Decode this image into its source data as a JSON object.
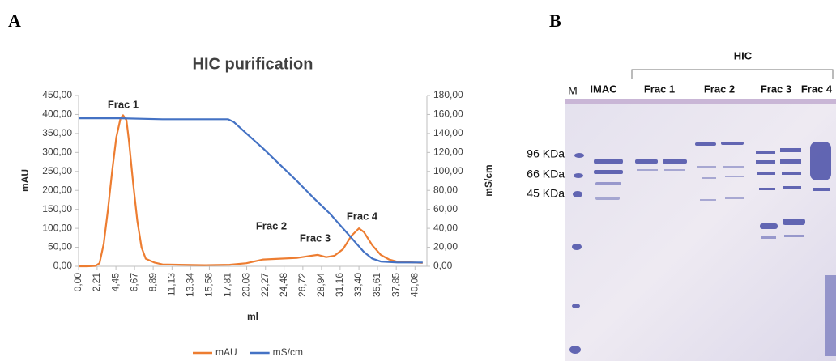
{
  "panel_labels": [
    "A",
    "B"
  ],
  "chart_data": {
    "type": "line",
    "title": "HIC purification",
    "x_label": "ml",
    "y_label": "mAU",
    "y2_label": "mS/cm",
    "grid": false,
    "legend": "bottom",
    "xlim": [
      0,
      41.5
    ],
    "xticks": [
      {
        "value": 0,
        "label": "0,00"
      },
      {
        "value": 2.21,
        "label": "2,21"
      },
      {
        "value": 4.45,
        "label": "4,45"
      },
      {
        "value": 6.67,
        "label": "6,67"
      },
      {
        "value": 8.89,
        "label": "8,89"
      },
      {
        "value": 11.13,
        "label": "11,13"
      },
      {
        "value": 13.34,
        "label": "13,34"
      },
      {
        "value": 15.58,
        "label": "15,58"
      },
      {
        "value": 17.81,
        "label": "17,81"
      },
      {
        "value": 20.03,
        "label": "20,03"
      },
      {
        "value": 22.27,
        "label": "22,27"
      },
      {
        "value": 24.48,
        "label": "24,48"
      },
      {
        "value": 26.72,
        "label": "26,72"
      },
      {
        "value": 28.94,
        "label": "28,94"
      },
      {
        "value": 31.16,
        "label": "31,16"
      },
      {
        "value": 33.4,
        "label": "33,40"
      },
      {
        "value": 35.61,
        "label": "35,61"
      },
      {
        "value": 37.85,
        "label": "37,85"
      },
      {
        "value": 40.08,
        "label": "40,08"
      }
    ],
    "ylim": [
      0,
      450
    ],
    "yticks": [
      {
        "value": 0,
        "label": "0,00"
      },
      {
        "value": 50,
        "label": "50,00"
      },
      {
        "value": 100,
        "label": "100,00"
      },
      {
        "value": 150,
        "label": "150,00"
      },
      {
        "value": 200,
        "label": "200,00"
      },
      {
        "value": 250,
        "label": "250,00"
      },
      {
        "value": 300,
        "label": "300,00"
      },
      {
        "value": 350,
        "label": "350,00"
      },
      {
        "value": 400,
        "label": "400,00"
      },
      {
        "value": 450,
        "label": "450,00"
      }
    ],
    "y2lim": [
      0,
      180
    ],
    "y2ticks": [
      {
        "value": 0,
        "label": "0,00"
      },
      {
        "value": 20,
        "label": "20,00"
      },
      {
        "value": 40,
        "label": "40,00"
      },
      {
        "value": 60,
        "label": "60,00"
      },
      {
        "value": 80,
        "label": "80,00"
      },
      {
        "value": 100,
        "label": "100,00"
      },
      {
        "value": 120,
        "label": "120,00"
      },
      {
        "value": 140,
        "label": "140,00"
      },
      {
        "value": 160,
        "label": "160,00"
      },
      {
        "value": 180,
        "label": "180,00"
      }
    ],
    "annotations": [
      "Frac 1",
      "Frac 2",
      "Frac 3",
      "Frac 4"
    ],
    "series": [
      {
        "name": "mAU",
        "color": "#ed7d31",
        "axis": "y",
        "x": [
          0,
          1,
          2,
          2.5,
          3,
          3.5,
          4,
          4.5,
          5,
          5.3,
          5.7,
          6,
          6.5,
          7,
          7.5,
          8,
          9,
          10,
          12,
          15,
          18,
          20,
          22,
          24,
          26,
          27.5,
          28.5,
          29.5,
          30.5,
          31.5,
          32.5,
          33.4,
          34,
          35,
          36,
          37,
          38,
          40,
          41
        ],
        "values": [
          0,
          0,
          1,
          8,
          60,
          150,
          250,
          340,
          390,
          398,
          385,
          330,
          220,
          120,
          50,
          20,
          10,
          5,
          4,
          3,
          4,
          8,
          18,
          20,
          22,
          27,
          30,
          24,
          28,
          45,
          80,
          100,
          90,
          55,
          30,
          18,
          12,
          10,
          9
        ]
      },
      {
        "name": "mS/cm",
        "color": "#4472c4",
        "axis": "y2",
        "x": [
          0,
          5,
          10,
          15,
          17.8,
          18.5,
          20,
          22,
          24,
          26,
          28,
          30,
          31,
          32,
          33,
          34,
          35,
          36,
          38,
          41
        ],
        "values": [
          156,
          156,
          155,
          155,
          155,
          152,
          140,
          124,
          107,
          90,
          72,
          55,
          45,
          35,
          25,
          15,
          8,
          5,
          4,
          4
        ]
      }
    ]
  },
  "gel": {
    "title": "HIC",
    "lanes": [
      "M",
      "IMAC",
      "Frac 1",
      "Frac 2",
      "Frac 3",
      "Frac 4"
    ],
    "markers": [
      "96 KDa",
      "66 KDa",
      "45 KDa"
    ]
  }
}
